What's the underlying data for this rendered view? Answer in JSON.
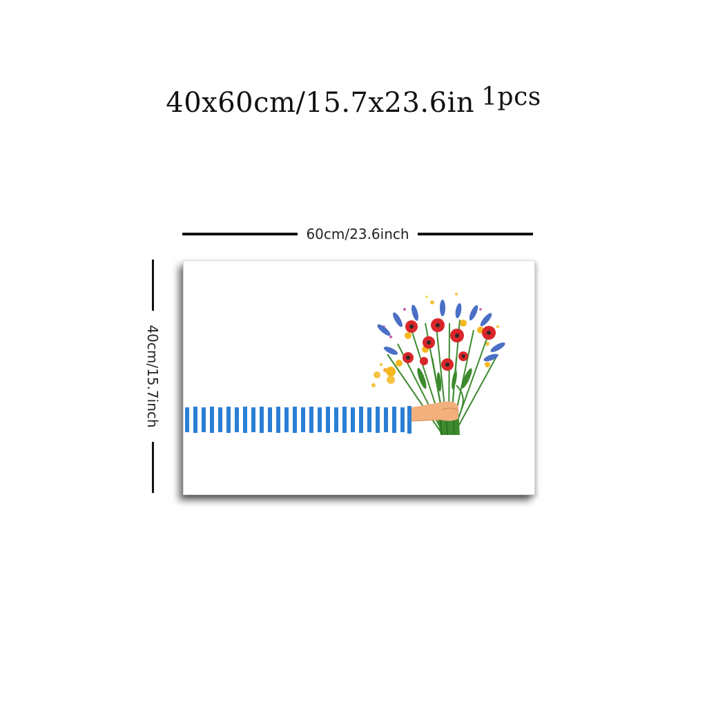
{
  "title": {
    "size_text": "40x60cm/15.7x23.6in",
    "quantity_text": "1pcs"
  },
  "dimensions": {
    "width_label": "60cm/23.6inch",
    "height_label": "40cm/15.7inch"
  },
  "artwork": {
    "subject": "striped arm holding flower bouquet",
    "colors": {
      "sleeve_stripe": "#2a7fd4",
      "poppy": "#d8262a",
      "stem": "#3d8a2e",
      "skin": "#f2b07c",
      "lavender": "#4a6fc4",
      "yellow_flower": "#f5b81f"
    }
  }
}
